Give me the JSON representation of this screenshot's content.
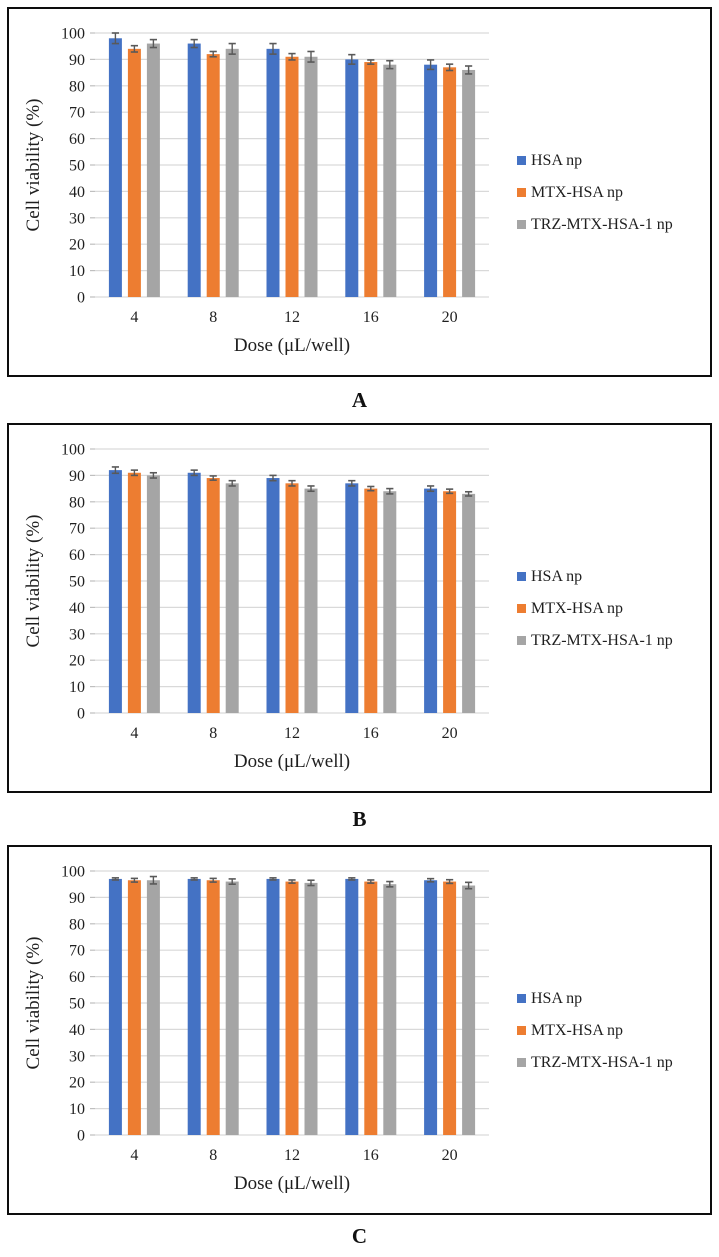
{
  "style": {
    "bar_blue": "#4472C4",
    "bar_orange": "#ED7D31",
    "bar_gray": "#A5A5A5",
    "error_bar_color": "#595959",
    "gridline_color": "#D9D9D9",
    "tick_color": "#BFBFBF",
    "text_color": "#1f1f1f",
    "panel_border_color": "#0d0d0d"
  },
  "chart_data": [
    {
      "type": "bar",
      "panel_label": "A",
      "title": "",
      "xlabel": "Dose (μL/well)",
      "ylabel": "Cell viability (%)",
      "ylim": [
        0,
        100
      ],
      "yticks": [
        0,
        10,
        20,
        30,
        40,
        50,
        60,
        70,
        80,
        90,
        100
      ],
      "grid": true,
      "legend_position": "right",
      "categories": [
        "4",
        "8",
        "12",
        "16",
        "20"
      ],
      "series": [
        {
          "name": "HSA np",
          "color": "#4472C4",
          "values": [
            98,
            96,
            94,
            90,
            88
          ],
          "errors": [
            2,
            1.5,
            2,
            1.8,
            1.8
          ]
        },
        {
          "name": "MTX-HSA np",
          "color": "#ED7D31",
          "values": [
            94,
            92,
            91,
            89,
            87
          ],
          "errors": [
            1.2,
            1,
            1.2,
            0.8,
            1.2
          ]
        },
        {
          "name": "TRZ-MTX-HSA-1 np",
          "color": "#A5A5A5",
          "values": [
            96,
            94,
            91,
            88,
            86
          ],
          "errors": [
            1.5,
            2,
            2,
            1.5,
            1.5
          ]
        }
      ]
    },
    {
      "type": "bar",
      "panel_label": "B",
      "title": "",
      "xlabel": "Dose (μL/well)",
      "ylabel": "Cell viability (%)",
      "ylim": [
        0,
        100
      ],
      "yticks": [
        0,
        10,
        20,
        30,
        40,
        50,
        60,
        70,
        80,
        90,
        100
      ],
      "grid": true,
      "legend_position": "right",
      "categories": [
        "4",
        "8",
        "12",
        "16",
        "20"
      ],
      "series": [
        {
          "name": "HSA np",
          "color": "#4472C4",
          "values": [
            92,
            91,
            89,
            87,
            85
          ],
          "errors": [
            1.2,
            1,
            1,
            1,
            1
          ]
        },
        {
          "name": "MTX-HSA np",
          "color": "#ED7D31",
          "values": [
            91,
            89,
            87,
            85,
            84
          ],
          "errors": [
            1,
            0.8,
            1,
            0.8,
            0.8
          ]
        },
        {
          "name": "TRZ-MTX-HSA-1 np",
          "color": "#A5A5A5",
          "values": [
            90,
            87,
            85,
            84,
            83
          ],
          "errors": [
            1,
            1,
            1,
            1,
            0.8
          ]
        }
      ]
    },
    {
      "type": "bar",
      "panel_label": "C",
      "title": "",
      "xlabel": "Dose (μL/well)",
      "ylabel": "Cell viability (%)",
      "ylim": [
        0,
        100
      ],
      "yticks": [
        0,
        10,
        20,
        30,
        40,
        50,
        60,
        70,
        80,
        90,
        100
      ],
      "grid": true,
      "legend_position": "right",
      "categories": [
        "4",
        "8",
        "12",
        "16",
        "20"
      ],
      "series": [
        {
          "name": "HSA np",
          "color": "#4472C4",
          "values": [
            97,
            97,
            97,
            97,
            96.5
          ],
          "errors": [
            0.4,
            0.4,
            0.4,
            0.4,
            0.6
          ]
        },
        {
          "name": "MTX-HSA np",
          "color": "#ED7D31",
          "values": [
            96.5,
            96.5,
            96,
            96,
            96
          ],
          "errors": [
            0.7,
            0.7,
            0.6,
            0.6,
            0.7
          ]
        },
        {
          "name": "TRZ-MTX-HSA-1 np",
          "color": "#A5A5A5",
          "values": [
            96.5,
            96,
            95.5,
            95,
            94.5
          ],
          "errors": [
            1.4,
            1,
            1,
            1,
            1.2
          ]
        }
      ]
    }
  ]
}
